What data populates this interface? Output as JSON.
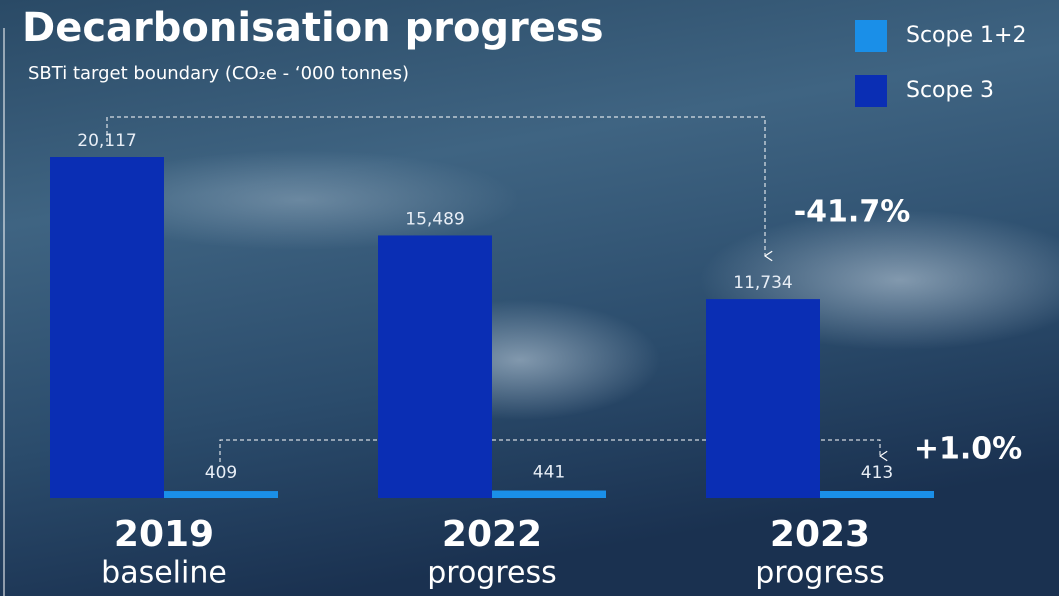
{
  "chart_data": {
    "type": "bar",
    "title": "Decarbonisation progress",
    "subtitle": "SBTi target boundary (CO₂e - ‘000 tonnes)",
    "categories": [
      "2019",
      "2022",
      "2023"
    ],
    "category_sublabels": [
      "baseline",
      "progress",
      "progress"
    ],
    "series": [
      {
        "name": "Scope 1+2",
        "color": "#1a8fe8",
        "values": [
          409,
          441,
          413
        ],
        "value_labels": [
          "409",
          "441",
          "413"
        ]
      },
      {
        "name": "Scope 3",
        "color": "#0a2eb4",
        "values": [
          20117,
          15489,
          11734
        ],
        "value_labels": [
          "20,117",
          "15,489",
          "11,734"
        ]
      }
    ],
    "annotations": [
      "-41.7%",
      "+1.0%"
    ],
    "legend": "top-right"
  }
}
